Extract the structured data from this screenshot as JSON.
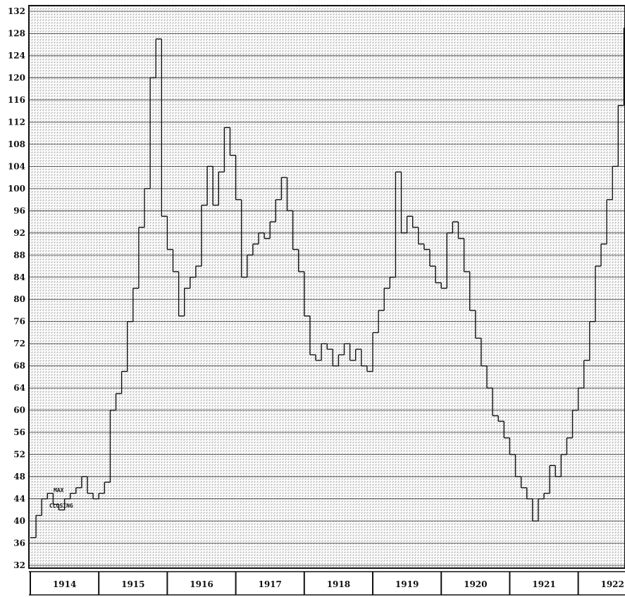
{
  "chart_data": {
    "type": "line",
    "title": "",
    "xlabel": "",
    "ylabel": "",
    "ylim": [
      32,
      132
    ],
    "y_ticks": [
      "132",
      "128",
      "124",
      "120",
      "116",
      "112",
      "108",
      "104",
      "100",
      "96",
      "92",
      "88",
      "84",
      "80",
      "76",
      "72",
      "68",
      "64",
      "60",
      "56",
      "52",
      "48",
      "44",
      "40",
      "36",
      "32"
    ],
    "years": [
      "1914",
      "1915",
      "1916",
      "1917",
      "1918",
      "1919",
      "1920",
      "1921",
      "1922"
    ],
    "grid": true,
    "annotations": [
      "MAX",
      "CLOSING"
    ],
    "series": [
      {
        "style": "monthly-step",
        "values": [
          37,
          41,
          44,
          45,
          43,
          42,
          44,
          45,
          46,
          48,
          45,
          44,
          45,
          47,
          60,
          63,
          67,
          76,
          82,
          93,
          100,
          120,
          127,
          95,
          89,
          85,
          77,
          82,
          84,
          86,
          97,
          104,
          97,
          103,
          111,
          106,
          98,
          84,
          88,
          90,
          92,
          91,
          94,
          98,
          102,
          96,
          89,
          85,
          77,
          70,
          69,
          72,
          71,
          68,
          70,
          72,
          69,
          71,
          68,
          67,
          74,
          78,
          82,
          84,
          103,
          92,
          95,
          93,
          90,
          89,
          86,
          83,
          82,
          92,
          94,
          91,
          85,
          78,
          73,
          68,
          64,
          59,
          58,
          55,
          52,
          48,
          46,
          44,
          40,
          44,
          45,
          50,
          48,
          52,
          55,
          60,
          64,
          69,
          76,
          86,
          90,
          98,
          104,
          115,
          129
        ]
      }
    ]
  }
}
